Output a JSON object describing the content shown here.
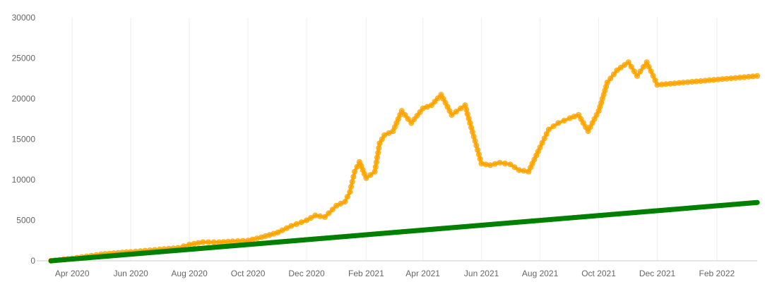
{
  "chart_data": {
    "type": "line",
    "title": "",
    "xlabel": "",
    "ylabel": "",
    "ylim": [
      0,
      30000
    ],
    "xlim": [
      "2020-03-01",
      "2022-03-15"
    ],
    "grid": "vertical",
    "legend": "none",
    "y_ticks": [
      "0",
      "5000",
      "10000",
      "15000",
      "20000",
      "25000",
      "30000"
    ],
    "x_ticks": [
      {
        "date": "2020-04-01",
        "label": "Apr 2020"
      },
      {
        "date": "2020-06-01",
        "label": "Jun 2020"
      },
      {
        "date": "2020-08-01",
        "label": "Aug 2020"
      },
      {
        "date": "2020-10-01",
        "label": "Oct 2020"
      },
      {
        "date": "2020-12-01",
        "label": "Dec 2020"
      },
      {
        "date": "2021-02-01",
        "label": "Feb 2021"
      },
      {
        "date": "2021-04-01",
        "label": "Apr 2021"
      },
      {
        "date": "2021-06-01",
        "label": "Jun 2021"
      },
      {
        "date": "2021-08-01",
        "label": "Aug 2021"
      },
      {
        "date": "2021-10-01",
        "label": "Oct 2021"
      },
      {
        "date": "2021-12-01",
        "label": "Dec 2021"
      },
      {
        "date": "2022-02-01",
        "label": "Feb 2022"
      }
    ],
    "series": [
      {
        "color": "#FFA500",
        "x": [
          "2020-03-10",
          "2020-04-01",
          "2020-05-01",
          "2020-06-01",
          "2020-07-01",
          "2020-07-20",
          "2020-08-01",
          "2020-08-15",
          "2020-09-01",
          "2020-09-15",
          "2020-10-01",
          "2020-10-15",
          "2020-11-01",
          "2020-11-15",
          "2020-12-01",
          "2020-12-10",
          "2020-12-20",
          "2021-01-01",
          "2021-01-10",
          "2021-01-15",
          "2021-01-20",
          "2021-01-25",
          "2021-02-01",
          "2021-02-10",
          "2021-02-15",
          "2021-02-20",
          "2021-03-01",
          "2021-03-10",
          "2021-03-20",
          "2021-04-01",
          "2021-04-10",
          "2021-04-20",
          "2021-05-01",
          "2021-05-15",
          "2021-05-20",
          "2021-06-01",
          "2021-06-10",
          "2021-06-20",
          "2021-07-01",
          "2021-07-10",
          "2021-07-20",
          "2021-08-01",
          "2021-08-10",
          "2021-08-20",
          "2021-09-01",
          "2021-09-10",
          "2021-09-20",
          "2021-10-01",
          "2021-10-10",
          "2021-10-20",
          "2021-11-01",
          "2021-11-10",
          "2021-11-20",
          "2021-12-01",
          "2022-03-15"
        ],
        "values": [
          0,
          300,
          800,
          1100,
          1400,
          1600,
          2000,
          2300,
          2300,
          2400,
          2500,
          2900,
          3500,
          4300,
          5000,
          5600,
          5400,
          6800,
          7300,
          8500,
          11000,
          12200,
          10200,
          11000,
          14500,
          15500,
          16000,
          18500,
          17000,
          18800,
          19200,
          20500,
          18000,
          19200,
          17000,
          12000,
          11800,
          12100,
          11900,
          11200,
          11000,
          14000,
          16200,
          17000,
          17600,
          18000,
          16000,
          18500,
          22000,
          23500,
          24500,
          22800,
          24500,
          21700,
          22800
        ]
      },
      {
        "color": "#008000",
        "x": [
          "2020-03-10",
          "2022-03-15"
        ],
        "values": [
          0,
          7200
        ]
      }
    ]
  }
}
